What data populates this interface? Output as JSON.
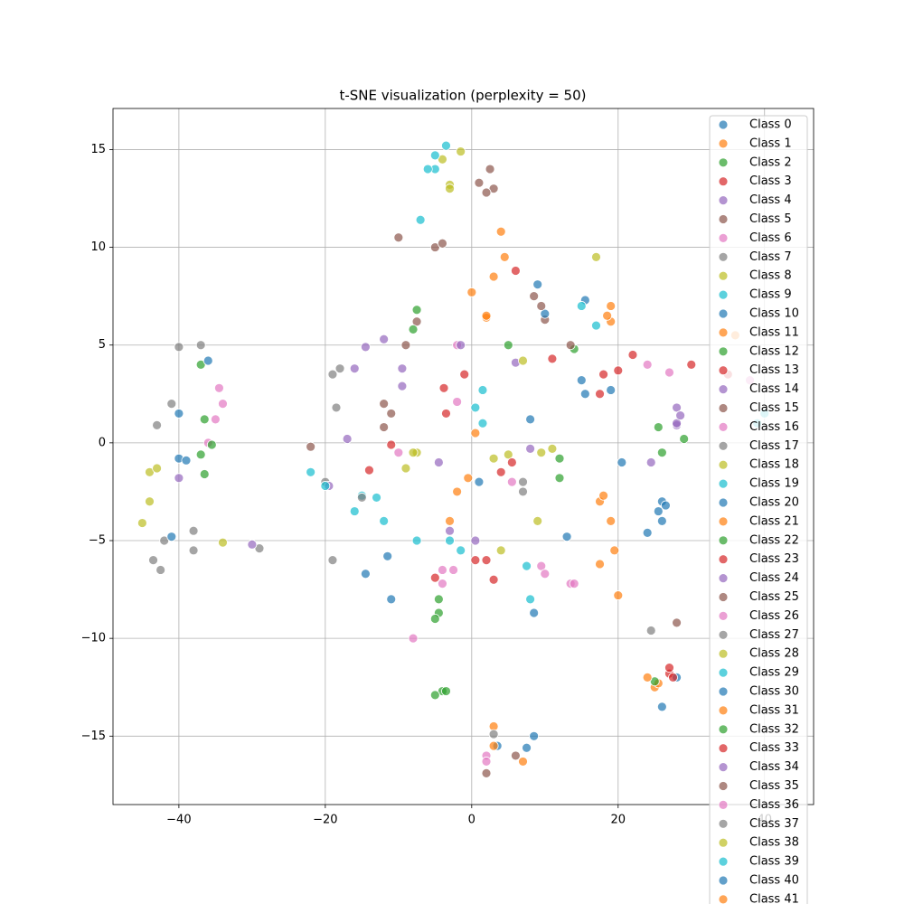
{
  "chart_data": {
    "type": "scatter",
    "title": "t-SNE visualization (perplexity = 50)",
    "xlim": [
      -49,
      46.7
    ],
    "ylim": [
      -18.5,
      17.1
    ],
    "xticks": [
      {
        "value": -40,
        "label": "−40"
      },
      {
        "value": -20,
        "label": "−20"
      },
      0,
      20,
      40
    ],
    "yticks": [
      {
        "value": -15,
        "label": "−15"
      },
      {
        "value": -10,
        "label": "−10"
      },
      {
        "value": -5,
        "label": "−5"
      },
      0,
      5,
      10,
      15
    ],
    "grid": true,
    "legend": "upper right",
    "series": [
      {
        "name": "Class 0",
        "color": "#1f77b4",
        "x": [
          -40,
          9,
          15.5,
          25.5,
          26,
          8.5,
          3.5
        ],
        "y": [
          -0.8,
          8.1,
          7.3,
          -3.5,
          -13.5,
          -8.7,
          -15.5
        ]
      },
      {
        "name": "Class 1",
        "color": "#ff7f0e",
        "x": [
          4,
          19,
          17.5,
          3,
          25,
          0
        ],
        "y": [
          10.8,
          6.2,
          -3,
          -14.5,
          -12.5,
          7.7
        ]
      },
      {
        "name": "Class 2",
        "color": "#2ca02c",
        "x": [
          -37,
          -36.5,
          -7.5,
          -4.5,
          25.5,
          -4
        ],
        "y": [
          4,
          -1.6,
          6.8,
          -8.7,
          0.8,
          -12.7
        ]
      },
      {
        "name": "Class 3",
        "color": "#d62728",
        "x": [
          6,
          0.5,
          -1,
          17.5,
          27,
          30
        ],
        "y": [
          8.8,
          -6,
          3.5,
          2.5,
          -11.8,
          4
        ]
      },
      {
        "name": "Class 4",
        "color": "#9467bd",
        "x": [
          -17,
          -4.5,
          28,
          -14.5,
          6
        ],
        "y": [
          0.2,
          -1,
          1.8,
          4.9,
          4.1
        ]
      },
      {
        "name": "Class 5",
        "color": "#8c564b",
        "x": [
          2.5,
          -11,
          8.5,
          -7.5,
          28
        ],
        "y": [
          14,
          1.5,
          7.5,
          6.2,
          -9.2
        ]
      },
      {
        "name": "Class 6",
        "color": "#e377c2",
        "x": [
          -35,
          -8,
          2,
          13.5,
          24,
          -2.5
        ],
        "y": [
          1.2,
          -10,
          -16,
          -7.2,
          4,
          -6.5
        ]
      },
      {
        "name": "Class 7",
        "color": "#7f7f7f",
        "x": [
          -42,
          -19,
          -20,
          24.5,
          -37
        ],
        "y": [
          -5,
          3.5,
          -2,
          -9.6,
          5
        ]
      },
      {
        "name": "Class 8",
        "color": "#bcbd22",
        "x": [
          -4,
          -44,
          17,
          5,
          -7.5
        ],
        "y": [
          14.5,
          -1.5,
          9.5,
          -0.6,
          -0.5
        ]
      },
      {
        "name": "Class 9",
        "color": "#17becf",
        "x": [
          -3.5,
          -7,
          -22,
          -13,
          0.5,
          17
        ],
        "y": [
          15.2,
          11.4,
          -1.5,
          -2.8,
          1.8,
          6
        ]
      },
      {
        "name": "Class 10",
        "color": "#1f77b4",
        "x": [
          -40,
          -11,
          13,
          19,
          24,
          20.5
        ],
        "y": [
          1.5,
          -8,
          -4.8,
          2.7,
          -4.6,
          -1
        ]
      },
      {
        "name": "Class 11",
        "color": "#ff7f0e",
        "x": [
          4.5,
          18.5,
          19.5,
          -3,
          7
        ],
        "y": [
          9.5,
          6.5,
          -5.5,
          -4,
          -16.3
        ]
      },
      {
        "name": "Class 12",
        "color": "#2ca02c",
        "x": [
          -36.5,
          -5,
          26,
          14,
          12
        ],
        "y": [
          1.2,
          -12.9,
          -0.5,
          4.8,
          -1.8
        ]
      },
      {
        "name": "Class 13",
        "color": "#d62728",
        "x": [
          -14,
          2,
          -3.8,
          22,
          35
        ],
        "y": [
          -1.4,
          -6,
          2.8,
          4.5,
          3.5
        ]
      },
      {
        "name": "Class 14",
        "color": "#9467bd",
        "x": [
          -19.5,
          -9.5,
          24.5,
          -3,
          28
        ],
        "y": [
          -2.2,
          2.9,
          -1,
          -4.5,
          0.9
        ]
      },
      {
        "name": "Class 15",
        "color": "#8c564b",
        "x": [
          3,
          -10,
          -12,
          10,
          -22
        ],
        "y": [
          13,
          10.5,
          2,
          6.3,
          -0.2
        ]
      },
      {
        "name": "Class 16",
        "color": "#e377c2",
        "x": [
          -34.5,
          -2,
          9.5,
          2,
          27
        ],
        "y": [
          2.8,
          5,
          -6.3,
          -16.3,
          3.6
        ]
      },
      {
        "name": "Class 17",
        "color": "#7f7f7f",
        "x": [
          -41,
          -18.5,
          -29,
          -42.5,
          7
        ],
        "y": [
          2,
          1.8,
          -5.4,
          -6.5,
          -2
        ]
      },
      {
        "name": "Class 18",
        "color": "#bcbd22",
        "x": [
          -3,
          -45,
          -9,
          9,
          3
        ],
        "y": [
          13.2,
          -4.1,
          -1.3,
          -4,
          -0.8
        ]
      },
      {
        "name": "Class 19",
        "color": "#17becf",
        "x": [
          -5,
          -15,
          -1.5,
          7.5,
          15,
          39
        ],
        "y": [
          14,
          -2.7,
          -5.5,
          -6.3,
          7,
          1
        ]
      },
      {
        "name": "Class 20",
        "color": "#1f77b4",
        "x": [
          -36,
          -14.5,
          8,
          15,
          26,
          28
        ],
        "y": [
          4.2,
          -6.7,
          1.2,
          3.2,
          -3,
          -12
        ]
      },
      {
        "name": "Class 21",
        "color": "#ff7f0e",
        "x": [
          2,
          18,
          20,
          0.5,
          25.5
        ],
        "y": [
          6.4,
          -2.7,
          -7.8,
          0.5,
          -12.3
        ]
      },
      {
        "name": "Class 22",
        "color": "#2ca02c",
        "x": [
          -37,
          -4.5,
          -8,
          5,
          25
        ],
        "y": [
          -0.6,
          -8,
          5.8,
          5,
          -12.2
        ]
      },
      {
        "name": "Class 23",
        "color": "#d62728",
        "x": [
          5.5,
          -5,
          3,
          11,
          18,
          27
        ],
        "y": [
          -1,
          -6.9,
          -7,
          4.3,
          3.5,
          -11.5
        ]
      },
      {
        "name": "Class 24",
        "color": "#9467bd",
        "x": [
          -40,
          -1.5,
          8,
          -16,
          28
        ],
        "y": [
          -1.8,
          5,
          -0.3,
          3.8,
          1
        ]
      },
      {
        "name": "Class 25",
        "color": "#8c564b",
        "x": [
          2,
          -5,
          -9,
          13.5,
          2
        ],
        "y": [
          12.8,
          10,
          5,
          5,
          -16.9
        ]
      },
      {
        "name": "Class 26",
        "color": "#e377c2",
        "x": [
          -36,
          -4,
          10,
          -2,
          38
        ],
        "y": [
          0,
          -6.5,
          -6.7,
          2.1,
          3.2
        ]
      },
      {
        "name": "Class 27",
        "color": "#7f7f7f",
        "x": [
          -38,
          -19,
          -15,
          7,
          -43
        ],
        "y": [
          -4.5,
          -6,
          -2.8,
          -2.5,
          0.9
        ]
      },
      {
        "name": "Class 28",
        "color": "#bcbd22",
        "x": [
          -44,
          -8,
          4,
          9.5,
          -1.5
        ],
        "y": [
          -3,
          -0.5,
          -5.5,
          -0.5,
          14.9
        ]
      },
      {
        "name": "Class 29",
        "color": "#17becf",
        "x": [
          -7.5,
          -3,
          1.5,
          8,
          -5
        ],
        "y": [
          -5,
          -5,
          1,
          -8,
          14.7
        ]
      },
      {
        "name": "Class 30",
        "color": "#1f77b4",
        "x": [
          -39,
          -11.5,
          10,
          26.5,
          8.5
        ],
        "y": [
          -0.9,
          -5.8,
          6.6,
          -3.2,
          -15
        ]
      },
      {
        "name": "Class 31",
        "color": "#ff7f0e",
        "x": [
          3,
          19,
          -2,
          24,
          2
        ],
        "y": [
          8.5,
          -4,
          -2.5,
          -12,
          6.5
        ]
      },
      {
        "name": "Class 32",
        "color": "#2ca02c",
        "x": [
          -35.5,
          -3.5,
          29,
          -5,
          12
        ],
        "y": [
          -0.1,
          -12.7,
          0.2,
          -9,
          -0.8
        ]
      },
      {
        "name": "Class 33",
        "color": "#d62728",
        "x": [
          4,
          -11,
          20,
          27.5,
          -3.5
        ],
        "y": [
          -1.5,
          -0.1,
          3.7,
          -12,
          1.5
        ]
      },
      {
        "name": "Class 34",
        "color": "#9467bd",
        "x": [
          -30,
          -9.5,
          0.5,
          28.5,
          -12
        ],
        "y": [
          -5.2,
          3.8,
          -5,
          1.4,
          5.3
        ]
      },
      {
        "name": "Class 35",
        "color": "#8c564b",
        "x": [
          -12,
          1,
          9.5,
          -4,
          6
        ],
        "y": [
          0.8,
          13.3,
          7,
          10.2,
          -16
        ]
      },
      {
        "name": "Class 36",
        "color": "#e377c2",
        "x": [
          -34,
          -4,
          14,
          -10,
          5.5
        ],
        "y": [
          2,
          -7.2,
          -7.2,
          -0.5,
          -2
        ]
      },
      {
        "name": "Class 37",
        "color": "#7f7f7f",
        "x": [
          -43.5,
          -38,
          -18,
          3,
          -40
        ],
        "y": [
          -6,
          -5.5,
          3.8,
          -14.9,
          4.9
        ]
      },
      {
        "name": "Class 38",
        "color": "#bcbd22",
        "x": [
          -43,
          -34,
          -3,
          11,
          7
        ],
        "y": [
          -1.3,
          -5.1,
          13,
          -0.3,
          4.2
        ]
      },
      {
        "name": "Class 39",
        "color": "#17becf",
        "x": [
          -6,
          -20,
          -16,
          -12,
          1.5,
          40
        ],
        "y": [
          14,
          -2.2,
          -3.5,
          -4,
          2.7,
          1.5
        ]
      },
      {
        "name": "Class 40",
        "color": "#1f77b4",
        "x": [
          -41,
          1,
          15.5,
          26,
          7.5
        ],
        "y": [
          -4.8,
          -2,
          2.5,
          -4,
          -15.6
        ]
      },
      {
        "name": "Class 41",
        "color": "#ff7f0e",
        "x": [
          -0.5,
          17.5,
          19,
          3,
          36
        ],
        "y": [
          -1.8,
          -6.2,
          7,
          -15.5,
          5.5
        ]
      }
    ]
  }
}
